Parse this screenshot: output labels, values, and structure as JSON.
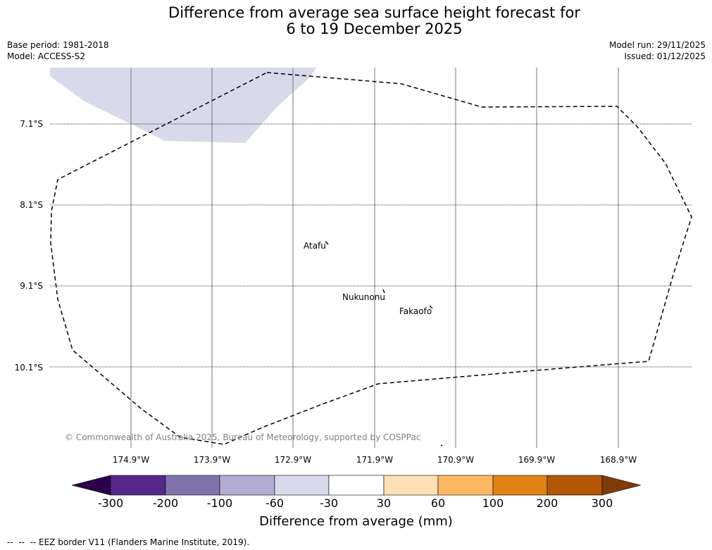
{
  "title": {
    "line1": "Difference from average sea surface height forecast for",
    "line2": "6 to 19 December 2025"
  },
  "meta_left": {
    "base_period": "Base period: 1981-2018",
    "model": "Model: ACCESS-S2"
  },
  "meta_right": {
    "model_run": "Model run: 29/11/2025",
    "issued": "Issued: 01/12/2025"
  },
  "map": {
    "latitude_labels": [
      "7.1°S",
      "8.1°S",
      "9.1°S",
      "10.1°S"
    ],
    "longitude_labels": [
      "174.9°W",
      "173.9°W",
      "172.9°W",
      "171.9°W",
      "170.9°W",
      "169.9°W",
      "168.9°W"
    ],
    "places": [
      "Atafu",
      "Nukunonu",
      "Fakaofo"
    ],
    "anomaly_patch_category": "-60 to -30",
    "copyright": "© Commonwealth of Australia 2025, Bureau of Meteorology, supported by COSPPac"
  },
  "colorbar": {
    "ticks": [
      "-300",
      "-200",
      "-100",
      "-60",
      "-30",
      "30",
      "60",
      "100",
      "200",
      "300"
    ],
    "colors": {
      "below_min": "#2d004b",
      "bins": [
        "#542788",
        "#8073ac",
        "#b2abd2",
        "#d8daeb",
        "#ffffff",
        "#fee0b6",
        "#fdb863",
        "#e08214",
        "#b35806"
      ],
      "above_max": "#7f3b08"
    },
    "label": "Difference from average (mm)"
  },
  "footer": {
    "legend_text": "--  --  -- EEZ border V11 (Flanders Marine Institute, 2019)."
  }
}
